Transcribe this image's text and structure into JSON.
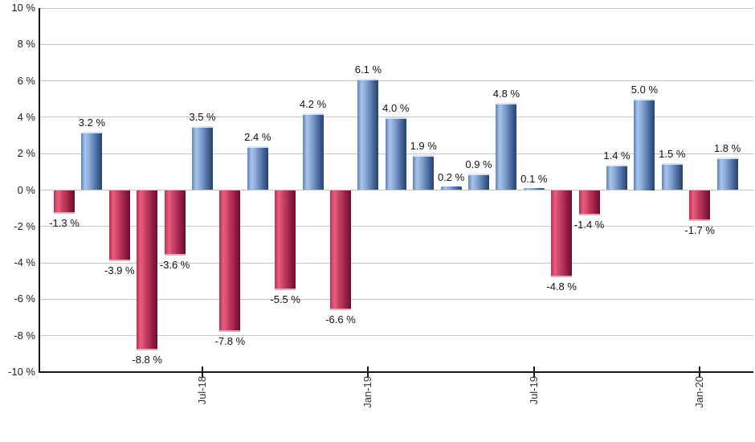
{
  "chart_data": {
    "type": "bar",
    "title": "",
    "unit": "%",
    "ylim": [
      -10,
      10
    ],
    "y_tick_step": 2,
    "grid": true,
    "legend": false,
    "values": [
      -1.3,
      3.2,
      -3.9,
      -8.8,
      -3.6,
      3.5,
      -7.8,
      2.4,
      -5.5,
      4.2,
      -6.6,
      6.1,
      4.0,
      1.9,
      0.2,
      0.9,
      4.8,
      0.1,
      -4.8,
      -1.4,
      1.4,
      5.0,
      1.5,
      -1.7,
      1.8
    ],
    "labels": [
      "-1.3 %",
      "3.2 %",
      "-3.9 %",
      "-8.8 %",
      "-3.6 %",
      "3.5 %",
      "-7.8 %",
      "2.4 %",
      "-5.5 %",
      "4.2 %",
      "-6.6 %",
      "6.1 %",
      "4.0 %",
      "1.9 %",
      "0.2 %",
      "0.9 %",
      "4.8 %",
      "0.1 %",
      "-4.8 %",
      "-1.4 %",
      "1.4 %",
      "5.0 %",
      "1.5 %",
      "-1.7 %",
      "1.8 %"
    ],
    "x_ticks": [
      {
        "index": 5,
        "label": "Jul-18"
      },
      {
        "index": 11,
        "label": "Jan-19"
      },
      {
        "index": 17,
        "label": "Jul-19"
      },
      {
        "index": 23,
        "label": "Jan-20"
      }
    ],
    "y_ticks": [
      {
        "value": 10,
        "label": "10 %"
      },
      {
        "value": 8,
        "label": "8 %"
      },
      {
        "value": 6,
        "label": "6 %"
      },
      {
        "value": 4,
        "label": "4 %"
      },
      {
        "value": 2,
        "label": "2 %"
      },
      {
        "value": 0,
        "label": "0 %"
      },
      {
        "value": -2,
        "label": "-2 %"
      },
      {
        "value": -4,
        "label": "-4 %"
      },
      {
        "value": -6,
        "label": "-6 %"
      },
      {
        "value": -8,
        "label": "-8 %"
      },
      {
        "value": -10,
        "label": "-10 %"
      }
    ],
    "colors": {
      "positive": "#7f9fd0",
      "negative": "#c43d5f",
      "gridline": "#c6c6c6",
      "axis": "#161616",
      "label_text": "#111111"
    }
  }
}
